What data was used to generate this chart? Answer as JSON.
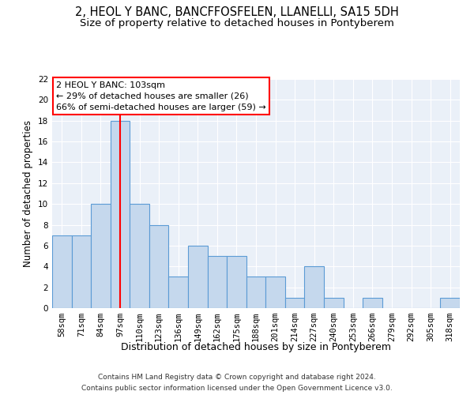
{
  "title": "2, HEOL Y BANC, BANCFFOSFELEN, LLANELLI, SA15 5DH",
  "subtitle": "Size of property relative to detached houses in Pontyberem",
  "xlabel": "Distribution of detached houses by size in Pontyberem",
  "ylabel": "Number of detached properties",
  "categories": [
    "58sqm",
    "71sqm",
    "84sqm",
    "97sqm",
    "110sqm",
    "123sqm",
    "136sqm",
    "149sqm",
    "162sqm",
    "175sqm",
    "188sqm",
    "201sqm",
    "214sqm",
    "227sqm",
    "240sqm",
    "253sqm",
    "266sqm",
    "279sqm",
    "292sqm",
    "305sqm",
    "318sqm"
  ],
  "values": [
    7,
    7,
    10,
    18,
    10,
    8,
    3,
    6,
    5,
    5,
    3,
    3,
    1,
    4,
    1,
    0,
    1,
    0,
    0,
    0,
    1
  ],
  "bar_color": "#c5d8ed",
  "bar_edge_color": "#5b9bd5",
  "vline_x": 3,
  "vline_color": "red",
  "annotation_title": "2 HEOL Y BANC: 103sqm",
  "annotation_line1": "← 29% of detached houses are smaller (26)",
  "annotation_line2": "66% of semi-detached houses are larger (59) →",
  "annotation_box_color": "white",
  "annotation_box_edge": "red",
  "ylim": [
    0,
    22
  ],
  "yticks": [
    0,
    2,
    4,
    6,
    8,
    10,
    12,
    14,
    16,
    18,
    20,
    22
  ],
  "footer1": "Contains HM Land Registry data © Crown copyright and database right 2024.",
  "footer2": "Contains public sector information licensed under the Open Government Licence v3.0.",
  "title_fontsize": 10.5,
  "subtitle_fontsize": 9.5,
  "tick_fontsize": 7.5,
  "ylabel_fontsize": 8.5,
  "xlabel_fontsize": 9,
  "footer_fontsize": 6.5,
  "annotation_fontsize": 8,
  "background_color": "#eaf0f8"
}
